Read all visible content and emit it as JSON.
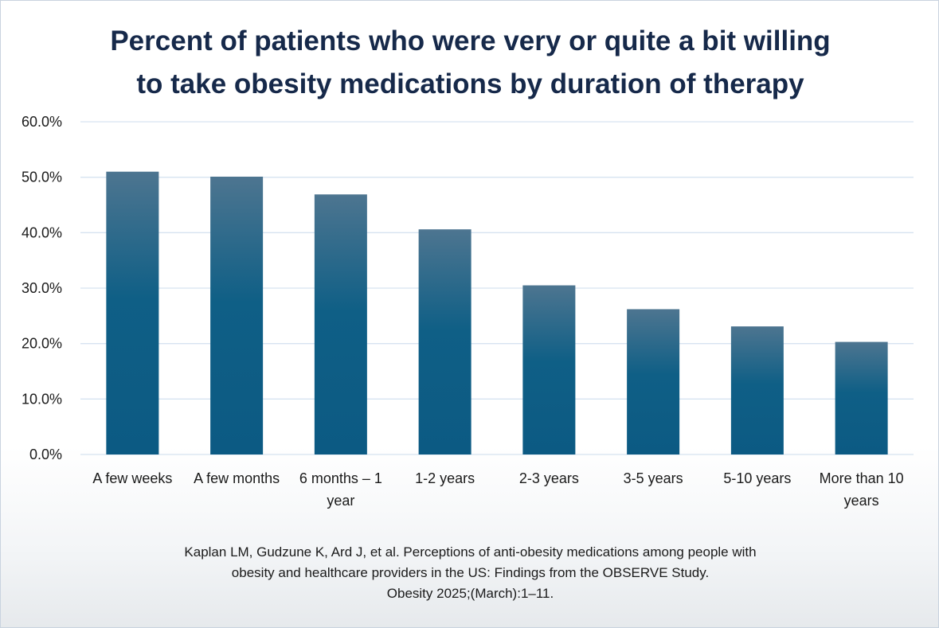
{
  "chart_data": {
    "type": "bar",
    "title_lines": [
      "Percent of patients who were very or quite a bit willing",
      "to take obesity medications by duration of therapy"
    ],
    "categories": [
      [
        "A few weeks"
      ],
      [
        "A few months"
      ],
      [
        "6 months – 1",
        "year"
      ],
      [
        "1-2 years"
      ],
      [
        "2-3 years"
      ],
      [
        "3-5 years"
      ],
      [
        "5-10 years"
      ],
      [
        "More than 10",
        "years"
      ]
    ],
    "values": [
      51.0,
      50.1,
      46.9,
      40.6,
      30.5,
      26.2,
      23.1,
      20.3
    ],
    "ylim": [
      0,
      60
    ],
    "yticks": [
      "0.0%",
      "10.0%",
      "20.0%",
      "30.0%",
      "40.0%",
      "50.0%",
      "60.0%"
    ],
    "grid": true,
    "legend": "none",
    "bar_color_top": "#4d7590",
    "bar_color_bottom": "#0c5a83",
    "grid_color": "#d6e3f0"
  },
  "citation": {
    "lines": [
      "Kaplan LM, Gudzune K, Ard J, et al. Perceptions of anti-obesity medications among people with",
      "obesity and healthcare providers in the US: Findings from the OBSERVE Study.",
      "Obesity 2025;(March):1–11."
    ]
  }
}
